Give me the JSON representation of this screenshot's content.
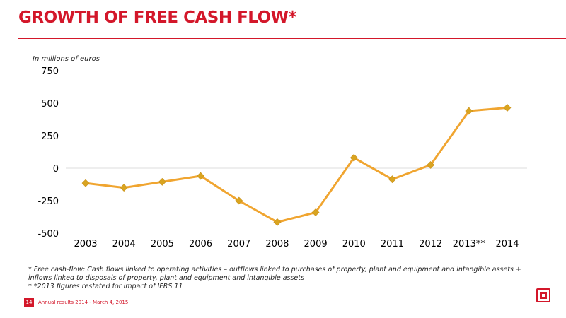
{
  "page": {
    "title": "GROWTH OF FREE CASH FLOW*",
    "unit_label": "In millions of euros",
    "footnotes": [
      "* Free cash-flow: Cash flows linked to operating activities – outflows  linked to purchases of property, plant and equipment and intangible assets + inflows linked to disposals of property, plant and equipment and intangible assets",
      "* *2013 figures restated for impact of IFRS 11"
    ],
    "page_number": "14",
    "footer_text": "Annual results 2014 - March 4, 2015",
    "logo_icon": "bouygues-logo-icon"
  },
  "colors": {
    "accent": "#d3172a",
    "line": "#f0a530",
    "marker": "#d9a420",
    "grid": "#e3e3e3"
  },
  "chart_data": {
    "type": "line",
    "title": "",
    "xlabel": "",
    "ylabel": "In millions of euros",
    "categories": [
      "2003",
      "2004",
      "2005",
      "2006",
      "2007",
      "2008",
      "2009",
      "2010",
      "2011",
      "2012",
      "2013**",
      "2014"
    ],
    "series": [
      {
        "values": [
          -115,
          -150,
          -105,
          -60,
          -250,
          -415,
          -340,
          80,
          -85,
          25,
          440,
          465
        ]
      }
    ],
    "yticks": [
      "750",
      "500",
      "250",
      "0",
      "-250",
      "-500"
    ],
    "ylim": [
      -500,
      750
    ],
    "grid": "horizontal line at 0 only",
    "marker": "diamond",
    "legend": "none"
  }
}
